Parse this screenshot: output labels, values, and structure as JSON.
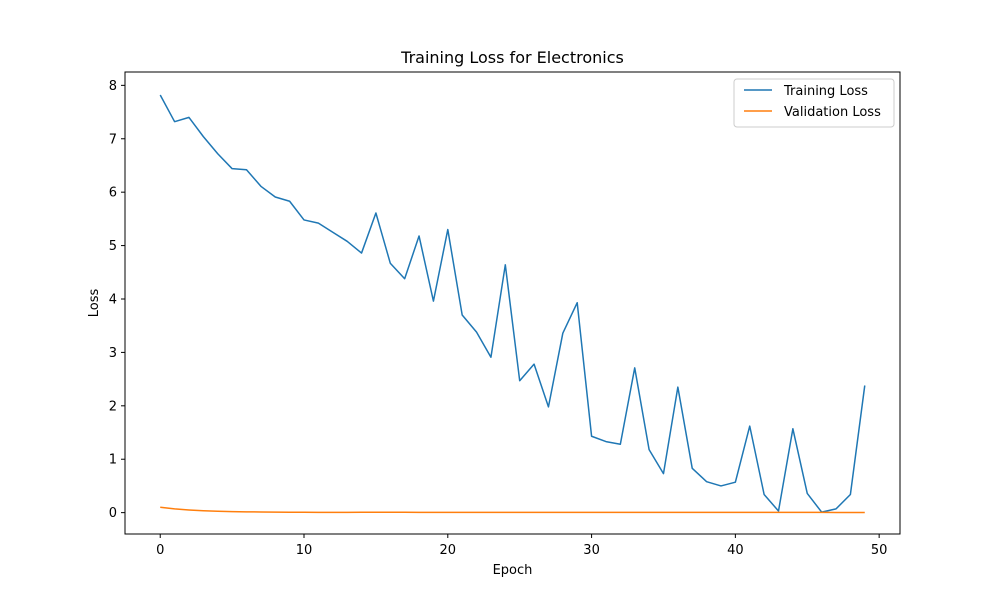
{
  "chart_data": {
    "type": "line",
    "title": "Training Loss for Electronics",
    "xlabel": "Epoch",
    "ylabel": "Loss",
    "xlim": [
      -2.45,
      51.45
    ],
    "ylim": [
      -0.4,
      8.25
    ],
    "xticks": [
      0,
      10,
      20,
      30,
      40,
      50
    ],
    "yticks": [
      0,
      1,
      2,
      3,
      4,
      5,
      6,
      7,
      8
    ],
    "grid": false,
    "legend_position": "top-right",
    "x": [
      0,
      1,
      2,
      3,
      4,
      5,
      6,
      7,
      8,
      9,
      10,
      11,
      12,
      13,
      14,
      15,
      16,
      17,
      18,
      19,
      20,
      21,
      22,
      23,
      24,
      25,
      26,
      27,
      28,
      29,
      30,
      31,
      32,
      33,
      34,
      35,
      36,
      37,
      38,
      39,
      40,
      41,
      42,
      43,
      44,
      45,
      46,
      47,
      48,
      49
    ],
    "series": [
      {
        "name": "Training Loss",
        "color": "#1f77b4",
        "values": [
          7.82,
          7.32,
          7.4,
          7.04,
          6.72,
          6.44,
          6.42,
          6.11,
          5.91,
          5.83,
          5.48,
          5.42,
          5.25,
          5.08,
          4.86,
          5.61,
          4.67,
          4.38,
          5.18,
          3.96,
          5.3,
          3.7,
          3.38,
          2.91,
          4.64,
          2.47,
          2.78,
          1.98,
          3.36,
          3.93,
          1.43,
          1.33,
          1.28,
          2.71,
          1.18,
          0.73,
          2.35,
          0.83,
          0.58,
          0.5,
          0.57,
          1.62,
          0.34,
          0.03,
          1.57,
          0.36,
          0.01,
          0.07,
          0.34,
          2.38
        ]
      },
      {
        "name": "Validation Loss",
        "color": "#ff7f0e",
        "values": [
          0.1,
          0.07,
          0.05,
          0.035,
          0.025,
          0.02,
          0.015,
          0.012,
          0.01,
          0.008,
          0.007,
          0.006,
          0.006,
          0.006,
          0.007,
          0.007,
          0.007,
          0.007,
          0.006,
          0.006,
          0.006,
          0.006,
          0.006,
          0.006,
          0.005,
          0.005,
          0.005,
          0.005,
          0.005,
          0.005,
          0.005,
          0.005,
          0.004,
          0.004,
          0.004,
          0.004,
          0.004,
          0.004,
          0.004,
          0.004,
          0.004,
          0.004,
          0.004,
          0.004,
          0.004,
          0.004,
          0.004,
          0.003,
          0.003,
          0.003
        ]
      }
    ]
  }
}
